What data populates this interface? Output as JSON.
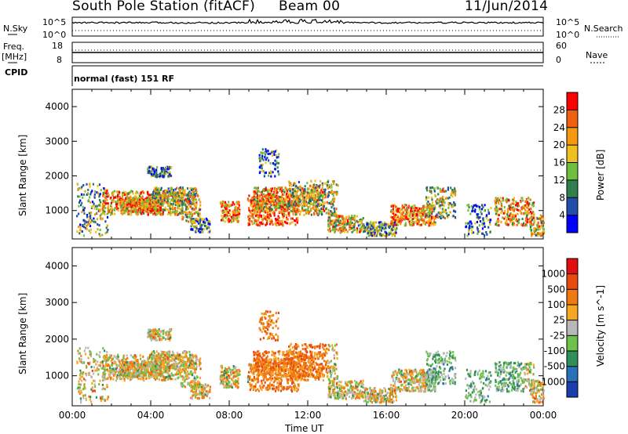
{
  "header": {
    "station": "South Pole Station (fitACF)",
    "beam": "Beam 00",
    "date": "11/Jun/2014"
  },
  "strip_labels": {
    "nsky": "N.Sky",
    "nsky_top": "10^5",
    "nsky_bottom": "10^0",
    "nsearch": "N.Search",
    "nsearch_top": "10^5",
    "nsearch_bottom": "10^0",
    "freq_line1": "Freq.",
    "freq_line2": "[MHz]",
    "freq_top": "18",
    "freq_bottom": "8",
    "nave": "Nave",
    "nave_top": "60",
    "nave_bottom": "0",
    "cpid": "CPID",
    "cpid_value": "normal (fast) 151 RF"
  },
  "colors": {
    "power_scale": [
      "#0000ff",
      "#1f4fa8",
      "#2f7f4f",
      "#6fbf3f",
      "#f0c020",
      "#f59a10",
      "#f06010",
      "#ff0000"
    ],
    "velocity_scale": [
      "#1b3faa",
      "#2870b8",
      "#2e8f5a",
      "#6cc24a",
      "#b8b8b8",
      "#f5a623",
      "#f07a12",
      "#e84a10",
      "#e01010"
    ]
  },
  "chart_data": [
    {
      "type": "heatmap",
      "title": "",
      "ylabel": "Slant Range [km]",
      "xlabel": "",
      "yticks": [
        "1000",
        "2000",
        "3000",
        "4000"
      ],
      "ylim": [
        180,
        4500
      ],
      "xlim": [
        0,
        24
      ],
      "colorbar": {
        "label": "Power [dB]",
        "ticks": [
          "4",
          "8",
          "12",
          "16",
          "20",
          "24",
          "28"
        ],
        "range": [
          0,
          30
        ]
      }
    },
    {
      "type": "heatmap",
      "title": "",
      "ylabel": "Slant Range [km]",
      "xlabel": "Time UT",
      "xticks": [
        "00:00",
        "04:00",
        "08:00",
        "12:00",
        "16:00",
        "20:00",
        "00:00"
      ],
      "yticks": [
        "1000",
        "2000",
        "3000",
        "4000"
      ],
      "ylim": [
        180,
        4500
      ],
      "xlim": [
        0,
        24
      ],
      "colorbar": {
        "label": "Velocity [m s^-1]",
        "ticks": [
          "1000",
          "500",
          "100",
          "25",
          "-25",
          "-100",
          "-500",
          "-1000"
        ],
        "range": [
          -1000,
          1000
        ]
      }
    }
  ]
}
